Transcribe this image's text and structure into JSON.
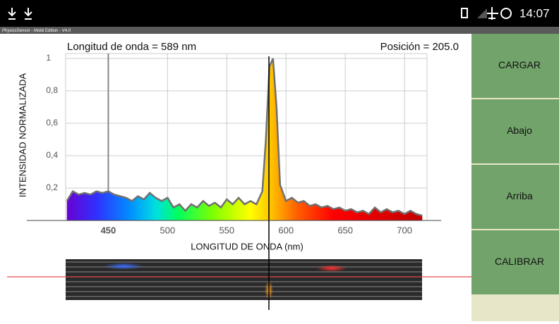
{
  "status_bar": {
    "time": "14:07"
  },
  "app_title": "PhysicsSensor - Mobil Edition - V4.0",
  "chart_data": {
    "type": "area",
    "title": "Longitud de onda = 589 nm",
    "subtitle": "Posición = 205.0",
    "x_label": "LONGITUD DE ONDA (nm)",
    "y_label": "INTENSIDAD NORMALIZADA",
    "x": [
      415,
      420,
      425,
      430,
      435,
      440,
      445,
      450,
      455,
      460,
      465,
      470,
      475,
      480,
      485,
      490,
      495,
      500,
      505,
      510,
      515,
      520,
      525,
      530,
      535,
      540,
      545,
      550,
      555,
      560,
      565,
      570,
      575,
      580,
      583,
      586,
      589,
      592,
      595,
      600,
      605,
      610,
      615,
      620,
      625,
      630,
      635,
      640,
      645,
      650,
      655,
      660,
      665,
      670,
      675,
      680,
      685,
      690,
      695,
      700,
      705,
      710,
      715
    ],
    "values": [
      0.12,
      0.18,
      0.16,
      0.17,
      0.16,
      0.18,
      0.17,
      0.18,
      0.16,
      0.15,
      0.14,
      0.12,
      0.15,
      0.13,
      0.17,
      0.14,
      0.12,
      0.14,
      0.08,
      0.1,
      0.06,
      0.1,
      0.08,
      0.12,
      0.09,
      0.11,
      0.08,
      0.13,
      0.1,
      0.14,
      0.1,
      0.12,
      0.1,
      0.18,
      0.5,
      0.95,
      1,
      0.7,
      0.22,
      0.12,
      0.14,
      0.11,
      0.12,
      0.09,
      0.1,
      0.08,
      0.09,
      0.07,
      0.08,
      0.06,
      0.07,
      0.05,
      0.06,
      0.04,
      0.08,
      0.05,
      0.07,
      0.05,
      0.06,
      0.04,
      0.06,
      0.04,
      0.03
    ],
    "xlim": [
      414,
      719
    ],
    "ylim": [
      0,
      1
    ],
    "xticks": [
      450,
      500,
      550,
      600,
      650,
      700
    ],
    "yticks": [
      {
        "value": 0.2,
        "label": "0,2"
      },
      {
        "value": 0.4,
        "label": "0,4"
      },
      {
        "value": 0.6,
        "label": "0,6"
      },
      {
        "value": 0.8,
        "label": "0,8"
      },
      1
    ],
    "grid": true,
    "color": "#707070"
  },
  "buttons": [
    "CARGAR",
    "Abajo",
    "Arriba",
    "CALIBRAR"
  ]
}
